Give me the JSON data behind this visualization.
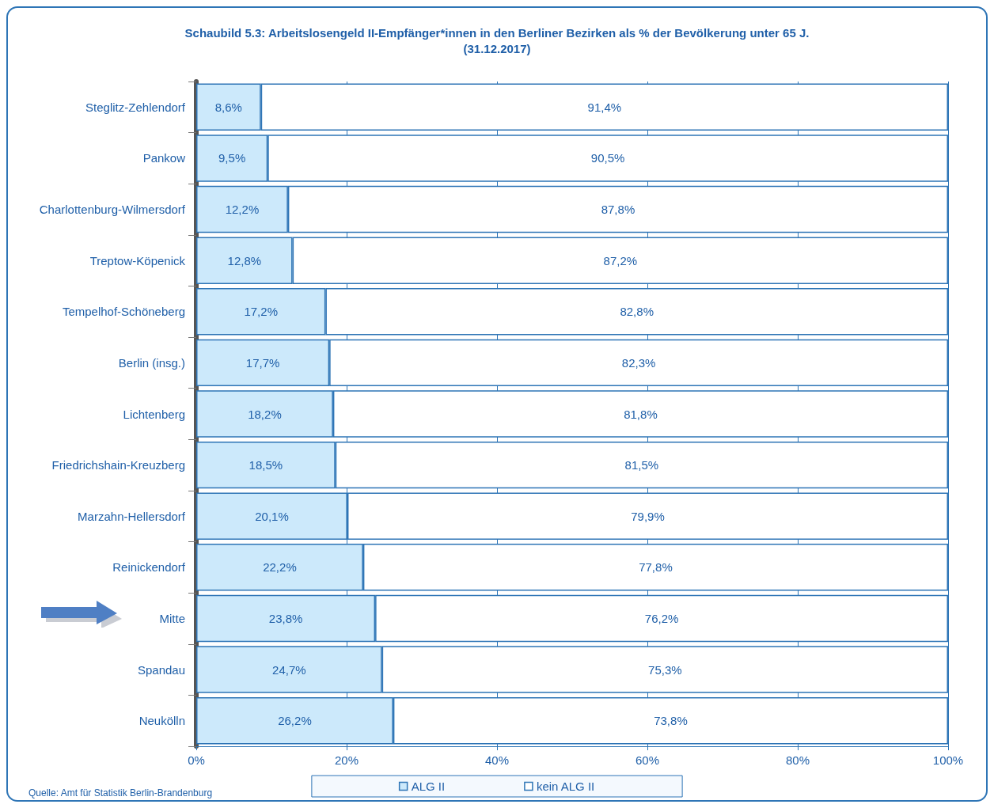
{
  "chart_data": {
    "type": "bar",
    "orientation": "horizontal",
    "stacked": true,
    "title": "Schaubild 5.3: Arbeitslosengeld II-Empfänger*innen in den Berliner Bezirken als % der Bevölkerung unter 65 J.\n(31.12.2017)",
    "categories": [
      "Steglitz-Zehlendorf",
      "Pankow",
      "Charlottenburg-Wilmersdorf",
      "Treptow-Köpenick",
      "Tempelhof-Schöneberg",
      "Berlin (insg.)",
      "Lichtenberg",
      "Friedrichshain-Kreuzberg",
      "Marzahn-Hellersdorf",
      "Reinickendorf",
      "Mitte",
      "Spandau",
      "Neukölln"
    ],
    "series": [
      {
        "name": "ALG II",
        "color": "#cce9fb",
        "values": [
          8.6,
          9.5,
          12.2,
          12.8,
          17.2,
          17.7,
          18.2,
          18.5,
          20.1,
          22.2,
          23.8,
          24.7,
          26.2
        ],
        "value_labels": [
          "8,6%",
          "9,5%",
          "12,2%",
          "12,8%",
          "17,2%",
          "17,7%",
          "18,2%",
          "18,5%",
          "20,1%",
          "22,2%",
          "23,8%",
          "24,7%",
          "26,2%"
        ]
      },
      {
        "name": "kein ALG II",
        "color": "#ffffff",
        "values": [
          91.4,
          90.5,
          87.8,
          87.2,
          82.8,
          82.3,
          81.8,
          81.5,
          79.9,
          77.8,
          76.2,
          75.3,
          73.8
        ],
        "value_labels": [
          "91,4%",
          "90,5%",
          "87,8%",
          "87,2%",
          "82,8%",
          "82,3%",
          "81,8%",
          "81,5%",
          "79,9%",
          "77,8%",
          "76,2%",
          "75,3%",
          "73,8%"
        ]
      }
    ],
    "xlim": [
      0,
      100
    ],
    "xticks": [
      {
        "value": 0,
        "label": "0%"
      },
      {
        "value": 20,
        "label": "20%"
      },
      {
        "value": 40,
        "label": "40%"
      },
      {
        "value": 60,
        "label": "60%"
      },
      {
        "value": 80,
        "label": "80%"
      },
      {
        "value": 100,
        "label": "100%"
      }
    ],
    "grid": "x",
    "legend": "bottom",
    "annotations": [
      "Quelle: Amt für Statistik Berlin-Brandenburg"
    ]
  }
}
